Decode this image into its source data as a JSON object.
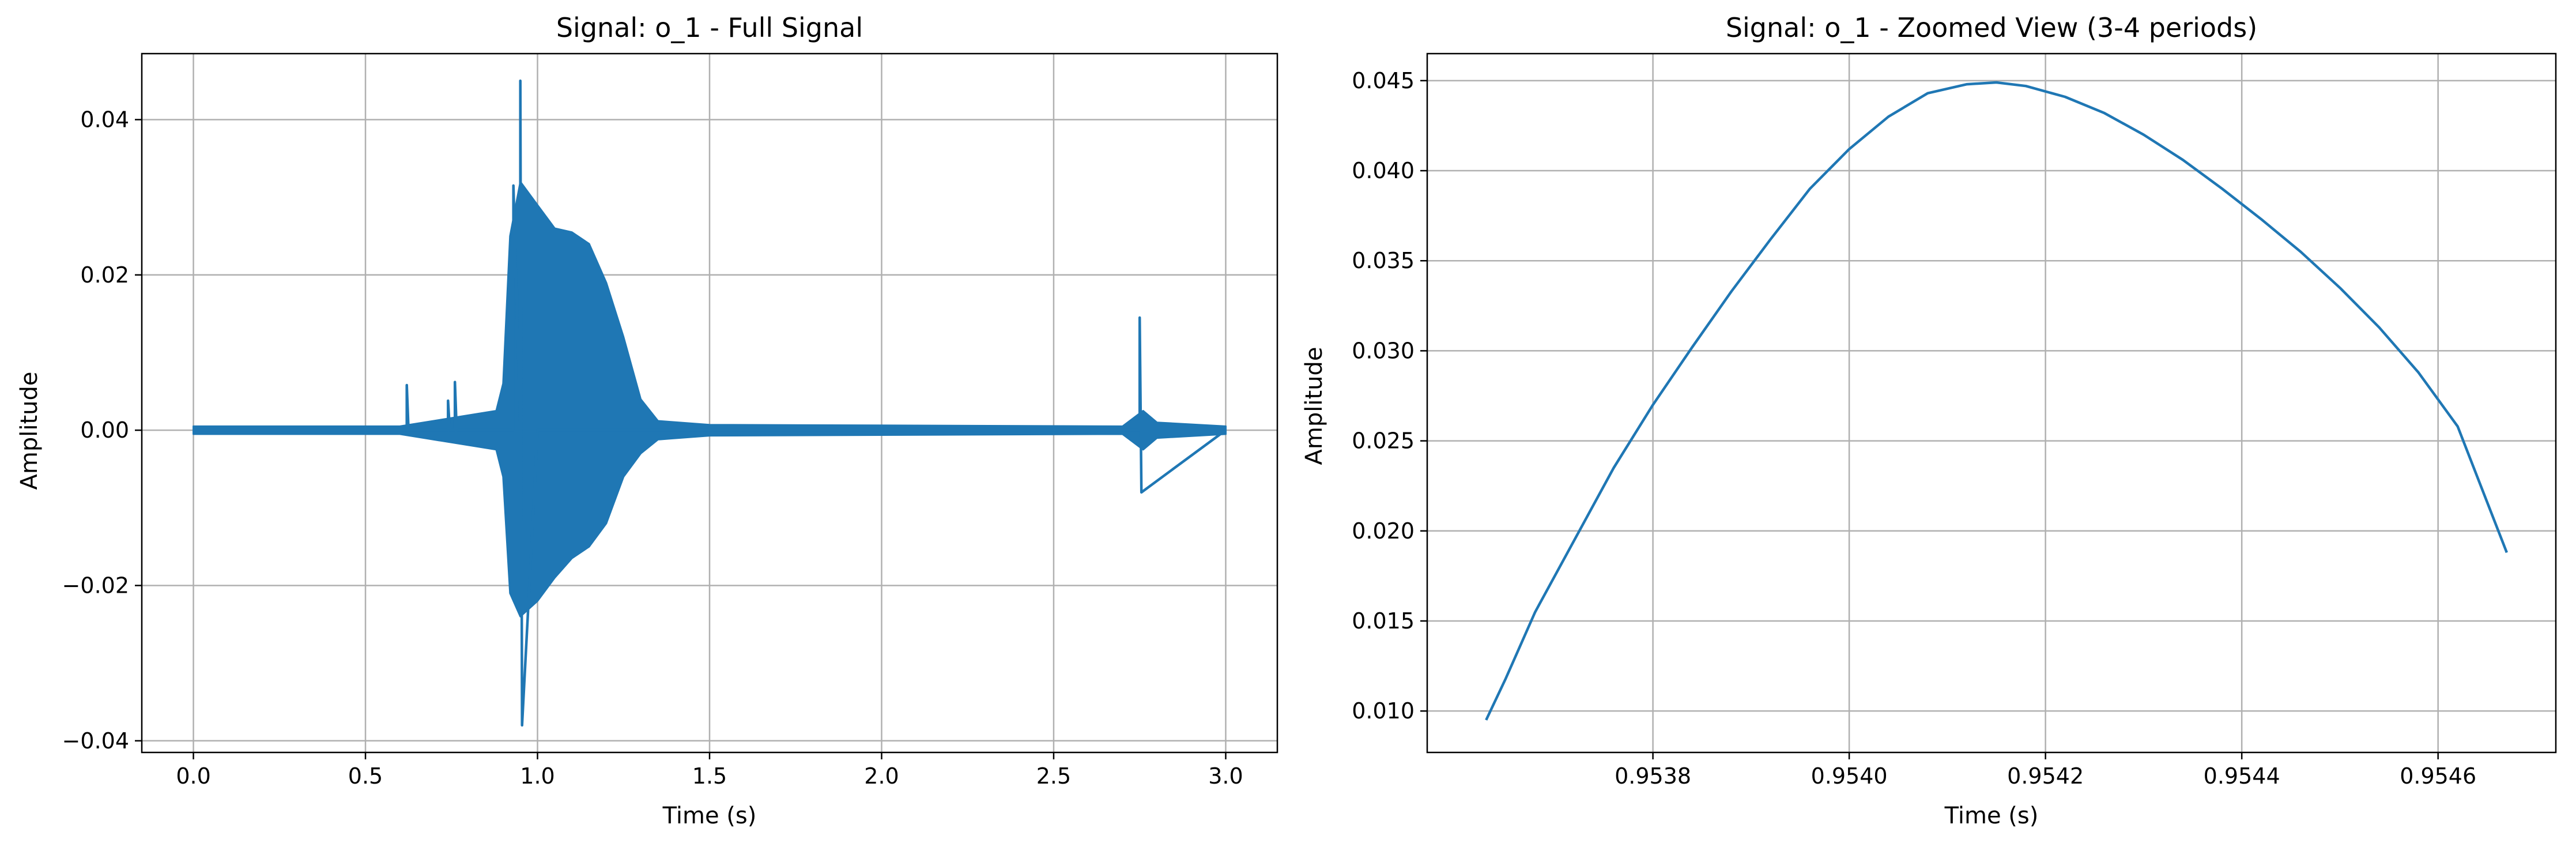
{
  "colors": {
    "line": "#1f77b4",
    "grid": "#b0b0b0",
    "axes": "#000000",
    "background": "#ffffff"
  },
  "chart_data": [
    {
      "type": "line",
      "title": "Signal: o_1 - Full Signal",
      "xlabel": "Time (s)",
      "ylabel": "Amplitude",
      "xlim": [
        -0.15,
        3.15
      ],
      "ylim": [
        -0.0415,
        0.0485
      ],
      "xticks": [
        0.0,
        0.5,
        1.0,
        1.5,
        2.0,
        2.5,
        3.0
      ],
      "xtick_labels": [
        "0.0",
        "0.5",
        "1.0",
        "1.5",
        "2.0",
        "2.5",
        "3.0"
      ],
      "yticks": [
        -0.04,
        -0.02,
        0.0,
        0.02,
        0.04
      ],
      "ytick_labels": [
        "−0.04",
        "−0.02",
        "0.00",
        "0.02",
        "0.04"
      ],
      "grid": true,
      "series": [
        {
          "x": [
            0.0,
            0.62,
            0.62,
            0.625,
            0.74,
            0.74,
            0.745,
            0.76,
            0.76,
            0.765,
            0.86,
            0.9,
            0.93,
            0.93,
            0.95,
            0.95,
            0.955,
            1.0,
            1.05,
            1.1,
            1.15,
            1.2,
            1.25,
            1.3,
            1.35,
            2.75,
            2.75,
            2.755,
            3.0
          ],
          "y": [
            0.0,
            0.0,
            0.0058,
            0.0,
            0.0,
            0.0038,
            0.0,
            0.0,
            0.0062,
            0.0,
            0.0,
            0.0,
            0.0,
            0.0315,
            0.0,
            0.045,
            -0.038,
            0.0,
            0.0,
            0.0,
            0.0,
            0.0,
            0.0,
            0.0,
            0.0,
            0.0,
            0.0145,
            -0.008,
            0.0
          ],
          "envelope": {
            "x": [
              0.0,
              0.6,
              0.88,
              0.9,
              0.92,
              0.95,
              1.0,
              1.05,
              1.1,
              1.15,
              1.2,
              1.25,
              1.3,
              1.35,
              1.5,
              2.7,
              2.76,
              2.8,
              3.0
            ],
            "upper": [
              0.0005,
              0.0005,
              0.0025,
              0.006,
              0.025,
              0.032,
              0.029,
              0.026,
              0.0255,
              0.024,
              0.019,
              0.012,
              0.004,
              0.0012,
              0.0007,
              0.0005,
              0.0025,
              0.001,
              0.0005
            ],
            "lower": [
              -0.0005,
              -0.0005,
              -0.0025,
              -0.006,
              -0.021,
              -0.024,
              -0.022,
              -0.019,
              -0.0165,
              -0.015,
              -0.012,
              -0.006,
              -0.003,
              -0.0012,
              -0.0007,
              -0.0005,
              -0.0025,
              -0.001,
              -0.0005
            ]
          }
        }
      ]
    },
    {
      "type": "line",
      "title": "Signal: o_1 - Zoomed View (3-4 periods)",
      "xlabel": "Time (s)",
      "ylabel": "Amplitude",
      "xlim": [
        0.95357,
        0.95472
      ],
      "ylim": [
        0.0077,
        0.0465
      ],
      "xticks": [
        0.9538,
        0.954,
        0.9542,
        0.9544,
        0.9546
      ],
      "xtick_labels": [
        "0.9538",
        "0.9540",
        "0.9542",
        "0.9544",
        "0.9546"
      ],
      "yticks": [
        0.01,
        0.015,
        0.02,
        0.025,
        0.03,
        0.035,
        0.04,
        0.045
      ],
      "ytick_labels": [
        "0.010",
        "0.015",
        "0.020",
        "0.025",
        "0.030",
        "0.035",
        "0.040",
        "0.045"
      ],
      "grid": true,
      "series": [
        {
          "x": [
            0.95363,
            0.95365,
            0.95368,
            0.95372,
            0.95376,
            0.9538,
            0.95384,
            0.95388,
            0.95392,
            0.95396,
            0.954,
            0.95404,
            0.95408,
            0.95412,
            0.95415,
            0.95418,
            0.95422,
            0.95426,
            0.9543,
            0.95434,
            0.95438,
            0.95442,
            0.95446,
            0.9545,
            0.95454,
            0.95458,
            0.95462,
            0.95467
          ],
          "y": [
            0.0095,
            0.0118,
            0.0155,
            0.0195,
            0.0235,
            0.027,
            0.0302,
            0.0333,
            0.0362,
            0.039,
            0.0412,
            0.043,
            0.0443,
            0.0448,
            0.0449,
            0.0447,
            0.0441,
            0.0432,
            0.042,
            0.0406,
            0.039,
            0.0373,
            0.0355,
            0.0335,
            0.0313,
            0.0288,
            0.0258,
            0.0188
          ]
        }
      ]
    }
  ]
}
